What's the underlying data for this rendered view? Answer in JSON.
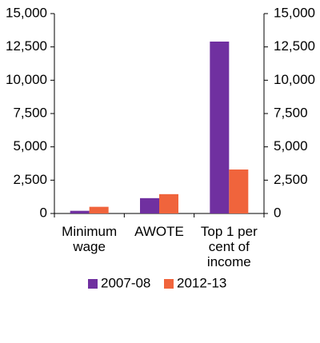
{
  "chart_data": {
    "type": "bar",
    "categories": [
      "Minimum wage",
      "AWOTE",
      "Top 1 per cent of income"
    ],
    "series": [
      {
        "name": "2007-08",
        "color": "#7030a0",
        "values": [
          200,
          1150,
          12900
        ]
      },
      {
        "name": "2012-13",
        "color": "#f0643c",
        "values": [
          500,
          1450,
          3300
        ]
      }
    ],
    "ylim": [
      0,
      15000
    ],
    "yticks": [
      0,
      {
        "value": 2500,
        "label": "2,500"
      },
      {
        "value": 5000,
        "label": "5,000"
      },
      {
        "value": 7500,
        "label": "7,500"
      },
      {
        "value": 10000,
        "label": "10,000"
      },
      {
        "value": 12500,
        "label": "12,500"
      },
      {
        "value": 15000,
        "label": "15,000"
      }
    ],
    "y2lim": [
      0,
      15000
    ],
    "y2ticks": [
      0,
      {
        "value": 2500,
        "label": "2,500"
      },
      {
        "value": 5000,
        "label": "5,000"
      },
      {
        "value": 7500,
        "label": "7,500"
      },
      {
        "value": 10000,
        "label": "10,000"
      },
      {
        "value": 12500,
        "label": "12,500"
      },
      {
        "value": 15000,
        "label": "15,000"
      }
    ],
    "grid": false,
    "legend": "bottom"
  }
}
